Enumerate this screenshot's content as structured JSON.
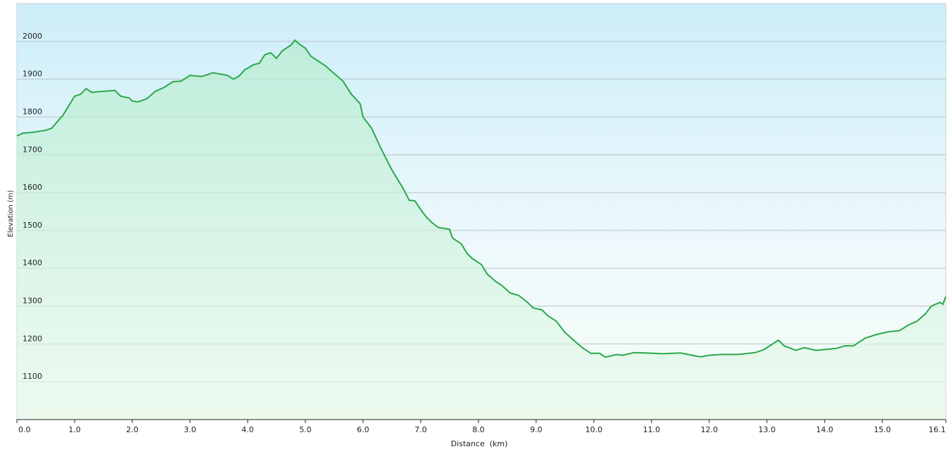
{
  "chart_data": {
    "type": "area",
    "xlabel": "Distance  (km)",
    "ylabel": "Elevation (m)",
    "series": [
      {
        "name": "Elevation",
        "color": "#2aa84a",
        "x": [
          0,
          0.1,
          0.3,
          0.5,
          0.6,
          0.8,
          1.0,
          1.1,
          1.2,
          1.3,
          1.5,
          1.7,
          1.8,
          1.95,
          2.0,
          2.1,
          2.25,
          2.4,
          2.55,
          2.7,
          2.85,
          3.0,
          3.2,
          3.4,
          3.65,
          3.75,
          3.85,
          3.95,
          4.1,
          4.2,
          4.3,
          4.4,
          4.5,
          4.6,
          4.75,
          4.82,
          4.9,
          5.0,
          5.1,
          5.2,
          5.35,
          5.5,
          5.65,
          5.8,
          5.95,
          6.0,
          6.15,
          6.3,
          6.4,
          6.5,
          6.6,
          6.7,
          6.8,
          6.9,
          7.0,
          7.1,
          7.2,
          7.3,
          7.5,
          7.55,
          7.7,
          7.8,
          7.9,
          8.05,
          8.15,
          8.3,
          8.4,
          8.55,
          8.7,
          8.85,
          8.95,
          9.1,
          9.2,
          9.35,
          9.5,
          9.65,
          9.8,
          9.95,
          10.1,
          10.2,
          10.4,
          10.5,
          10.7,
          10.9,
          11.2,
          11.5,
          11.7,
          11.85,
          12.0,
          12.2,
          12.5,
          12.8,
          12.95,
          13.1,
          13.2,
          13.3,
          13.5,
          13.65,
          13.85,
          14.0,
          14.2,
          14.35,
          14.5,
          14.7,
          14.9,
          15.1,
          15.3,
          15.45,
          15.6,
          15.75,
          15.85,
          16.0,
          16.05,
          16.1
        ],
        "values": [
          1750,
          1757,
          1760,
          1765,
          1770,
          1805,
          1855,
          1860,
          1875,
          1865,
          1868,
          1870,
          1855,
          1850,
          1842,
          1840,
          1848,
          1868,
          1878,
          1893,
          1895,
          1910,
          1907,
          1917,
          1910,
          1900,
          1908,
          1925,
          1938,
          1942,
          1965,
          1970,
          1955,
          1975,
          1990,
          2003,
          1992,
          1982,
          1960,
          1950,
          1935,
          1915,
          1895,
          1860,
          1835,
          1800,
          1770,
          1720,
          1690,
          1660,
          1635,
          1610,
          1580,
          1578,
          1555,
          1535,
          1520,
          1508,
          1503,
          1480,
          1465,
          1440,
          1425,
          1410,
          1385,
          1365,
          1355,
          1335,
          1328,
          1310,
          1295,
          1290,
          1275,
          1260,
          1230,
          1210,
          1190,
          1175,
          1175,
          1165,
          1172,
          1170,
          1177,
          1176,
          1174,
          1176,
          1170,
          1166,
          1170,
          1172,
          1172,
          1177,
          1185,
          1200,
          1210,
          1195,
          1183,
          1190,
          1183,
          1185,
          1188,
          1195,
          1195,
          1215,
          1225,
          1232,
          1235,
          1250,
          1260,
          1280,
          1300,
          1310,
          1305,
          1325
        ]
      }
    ],
    "xlim": [
      0,
      16.1
    ],
    "xticks": [
      {
        "value": 0,
        "label": "0.0"
      },
      {
        "value": 1,
        "label": "1.0"
      },
      {
        "value": 2,
        "label": "2.0"
      },
      {
        "value": 3,
        "label": "3.0"
      },
      {
        "value": 4,
        "label": "4.0"
      },
      {
        "value": 5,
        "label": "5.0"
      },
      {
        "value": 6,
        "label": "6.0"
      },
      {
        "value": 7,
        "label": "7.0"
      },
      {
        "value": 8,
        "label": "8.0"
      },
      {
        "value": 9,
        "label": "9.0"
      },
      {
        "value": 10,
        "label": "10.0"
      },
      {
        "value": 11,
        "label": "11.0"
      },
      {
        "value": 12,
        "label": "12.0"
      },
      {
        "value": 13,
        "label": "13.0"
      },
      {
        "value": 14,
        "label": "14.0"
      },
      {
        "value": 15,
        "label": "15.0"
      },
      16.1
    ],
    "ylim": [
      1000,
      2100
    ],
    "yticks": [
      1100,
      1200,
      1300,
      1400,
      1500,
      1600,
      1700,
      1800,
      1900,
      2000
    ],
    "grid": true
  }
}
